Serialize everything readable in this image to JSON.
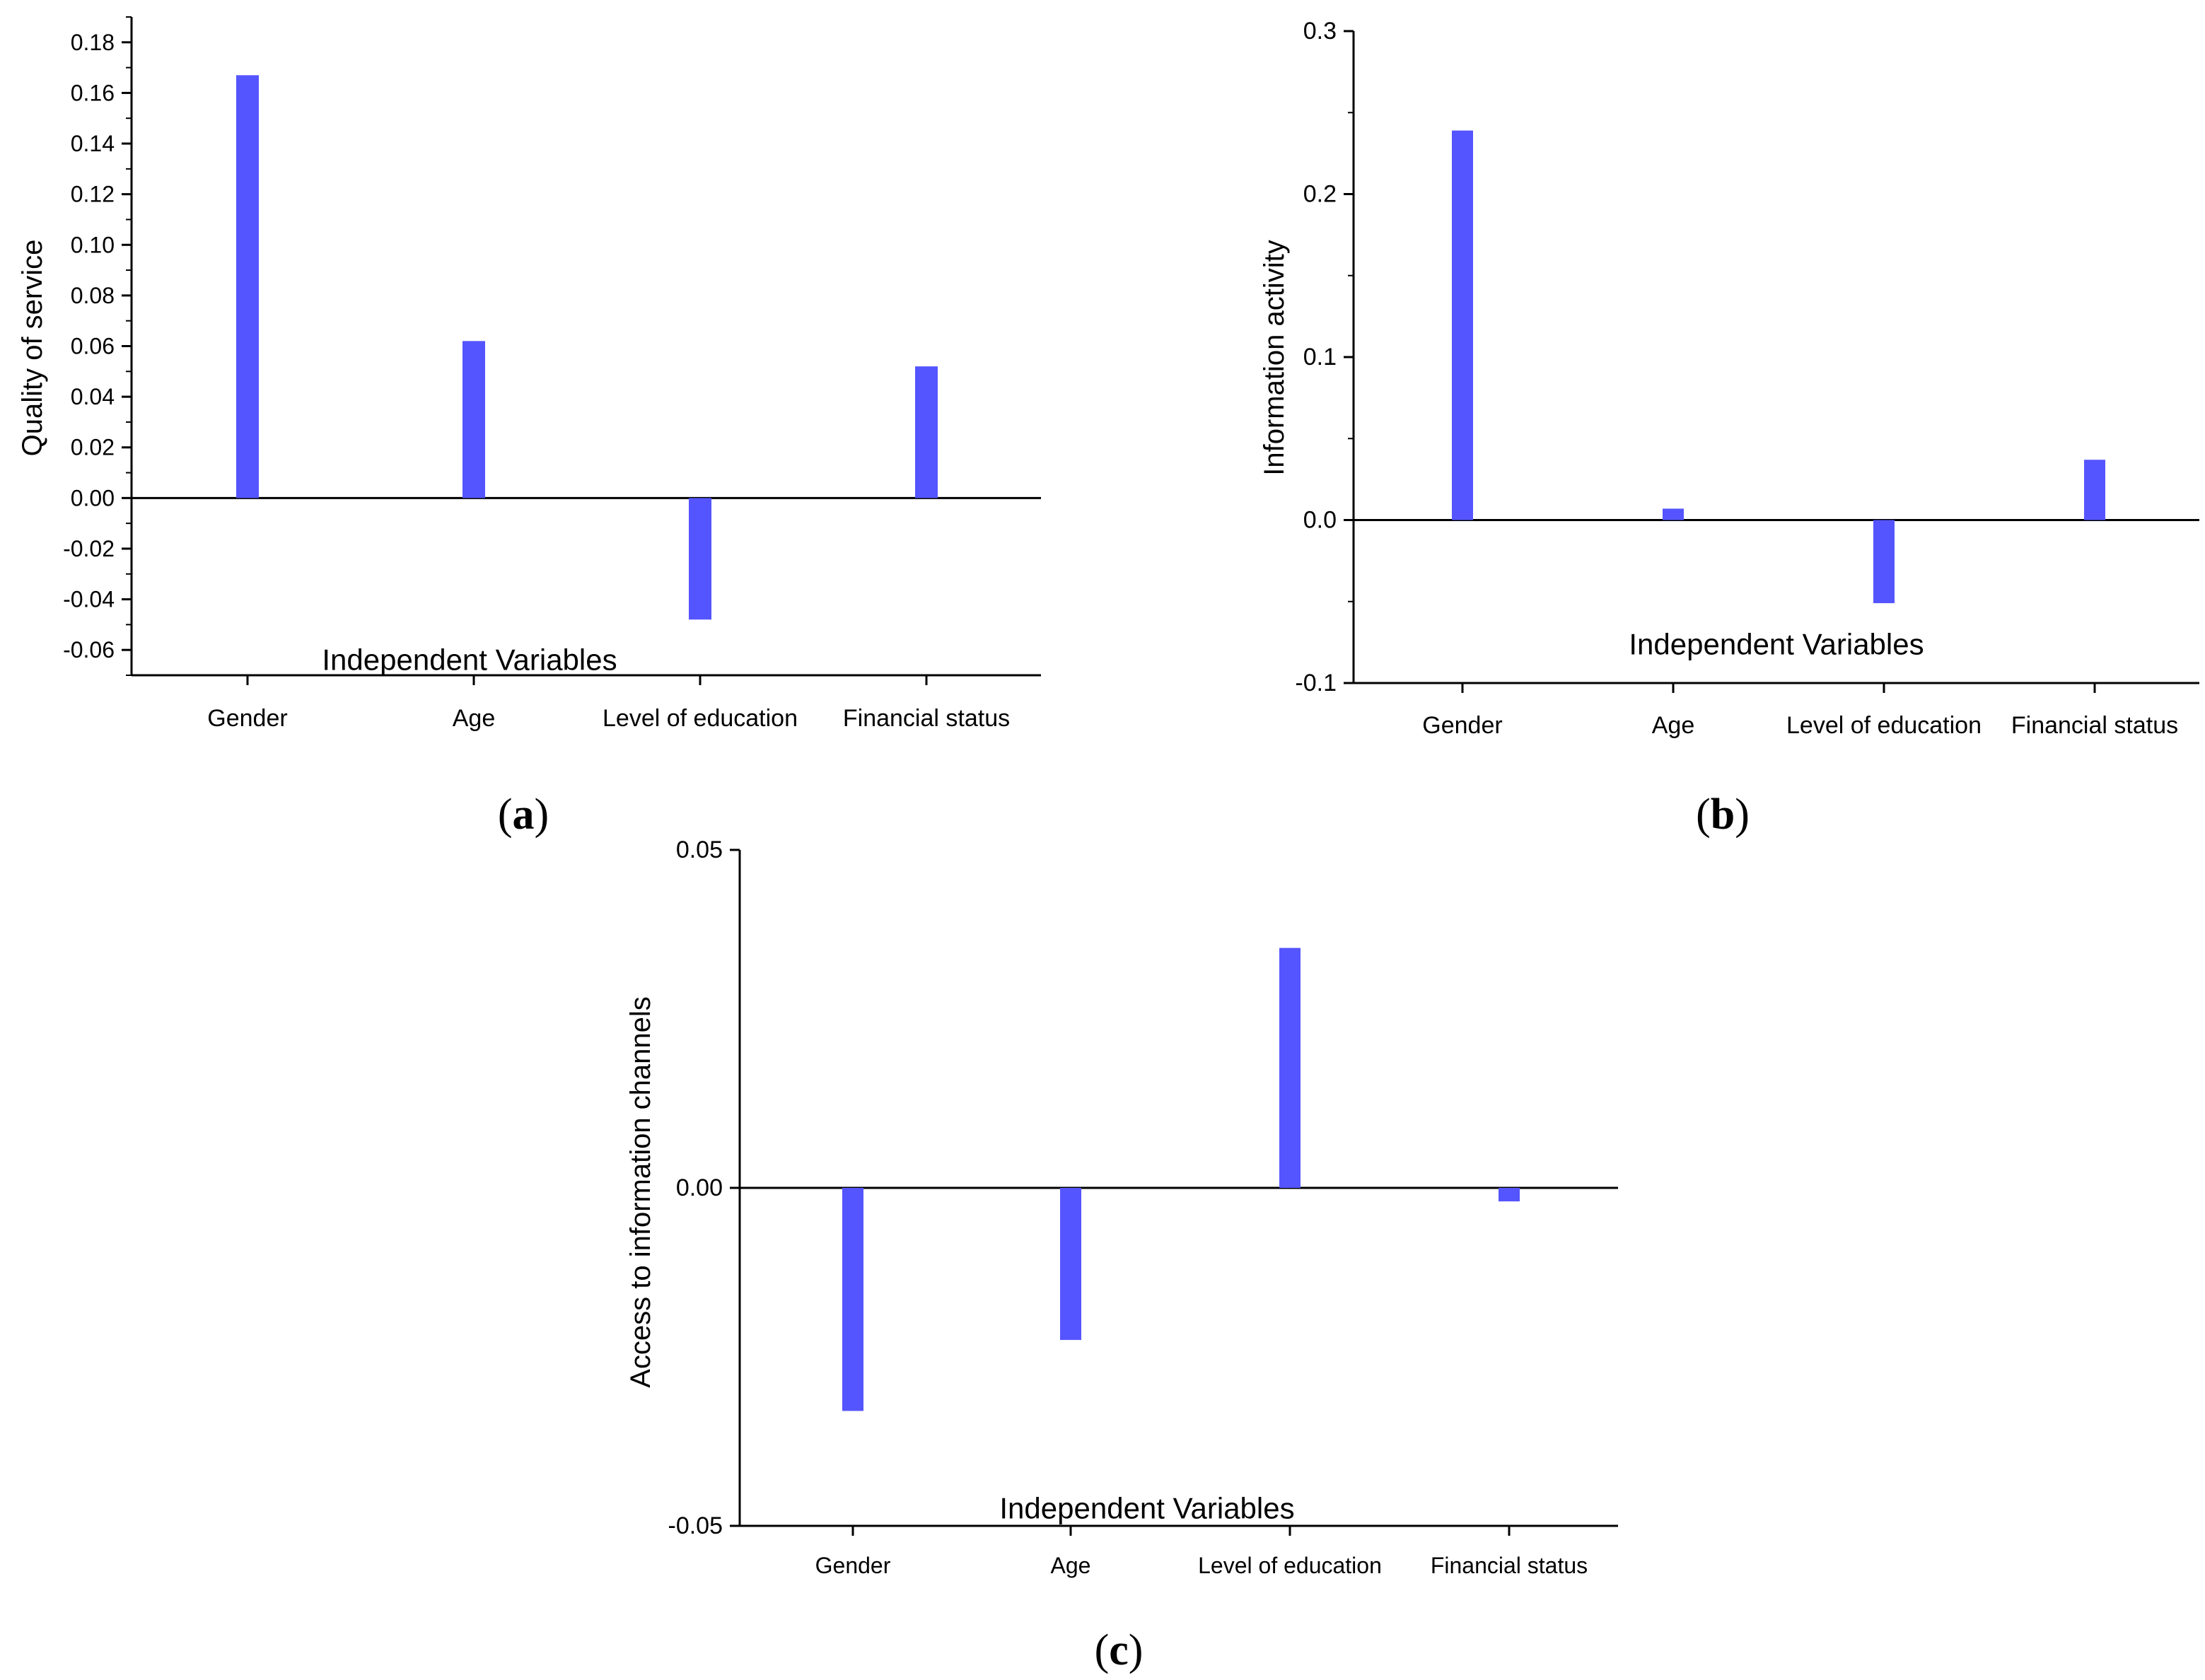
{
  "chart_data": [
    {
      "panel": "a",
      "panel_label": "(a)",
      "type": "bar",
      "title": "",
      "xlabel": "Independent Variables",
      "ylabel": "Quality of service",
      "categories": [
        "Gender",
        "Age",
        "Level of education",
        "Financial status"
      ],
      "series": [
        {
          "name": "Quality of service",
          "values": [
            0.167,
            0.062,
            -0.048,
            0.052
          ]
        }
      ],
      "ylim": [
        -0.07,
        0.19
      ],
      "yticks": [
        -0.06,
        -0.04,
        -0.02,
        0.0,
        0.02,
        0.04,
        0.06,
        0.08,
        0.1,
        0.12,
        0.14,
        0.16,
        0.18
      ],
      "ytick_labels": [
        "-0.06",
        "-0.04",
        "-0.02",
        "0.00",
        "0.02",
        "0.04",
        "0.06",
        "0.08",
        "0.10",
        "0.12",
        "0.14",
        "0.16",
        "0.18"
      ],
      "grid": false,
      "color": "#5555ff"
    },
    {
      "panel": "b",
      "panel_label": "(b)",
      "type": "bar",
      "title": "",
      "xlabel": "Independent Variables",
      "ylabel": "Information activity",
      "categories": [
        "Gender",
        "Age",
        "Level of education",
        "Financial status"
      ],
      "series": [
        {
          "name": "Information activity",
          "values": [
            0.239,
            0.007,
            -0.051,
            0.037
          ]
        }
      ],
      "ylim": [
        -0.1,
        0.3
      ],
      "yticks": [
        -0.1,
        0.0,
        0.1,
        0.2,
        0.3
      ],
      "ytick_labels": [
        "-0.1",
        "0.0",
        "0.1",
        "0.2",
        "0.3"
      ],
      "grid": false,
      "color": "#5555ff"
    },
    {
      "panel": "c",
      "panel_label": "(c)",
      "type": "bar",
      "title": "",
      "xlabel": "Independent Variables",
      "ylabel": "Access to information channels",
      "categories": [
        "Gender",
        "Age",
        "Level of education",
        "Financial status"
      ],
      "series": [
        {
          "name": "Access to information channels",
          "values": [
            -0.033,
            -0.0225,
            0.0355,
            -0.002
          ]
        }
      ],
      "ylim": [
        -0.05,
        0.05
      ],
      "yticks": [
        -0.05,
        0.0,
        0.05
      ],
      "ytick_labels": [
        "-0.05",
        "0.00",
        "0.05"
      ],
      "grid": false,
      "color": "#5555ff"
    }
  ]
}
